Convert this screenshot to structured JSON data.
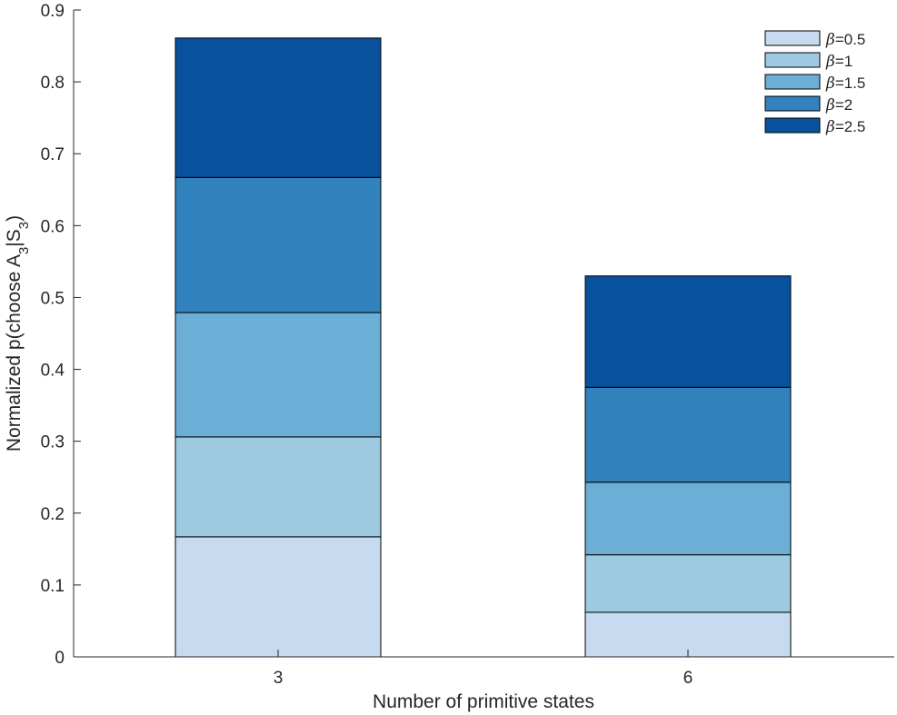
{
  "chart_data": {
    "type": "bar",
    "stacked": true,
    "categories": [
      "3",
      "6"
    ],
    "series": [
      {
        "name": "β=0.5",
        "color": "#c6dbef",
        "values": [
          0.167,
          0.062
        ]
      },
      {
        "name": "β=1",
        "color": "#9ecae1",
        "values": [
          0.139,
          0.08
        ]
      },
      {
        "name": "β=1.5",
        "color": "#6baed6",
        "values": [
          0.173,
          0.101
        ]
      },
      {
        "name": "β=2",
        "color": "#3182bd",
        "values": [
          0.188,
          0.132
        ]
      },
      {
        "name": "β=2.5",
        "color": "#08519c",
        "values": [
          0.194,
          0.155
        ]
      }
    ],
    "xlabel": "Number of primitive states",
    "ylabel": {
      "text": "Normalized p(choose A",
      "sub1": "3",
      "mid": "|S",
      "sub2": "3",
      "end": ")"
    },
    "ylim": [
      0,
      0.9
    ],
    "yticks": [
      "0",
      "0.1",
      "0.2",
      "0.3",
      "0.4",
      "0.5",
      "0.6",
      "0.7",
      "0.8",
      "0.9"
    ],
    "legend": {
      "position": "top-right",
      "entries": [
        {
          "symbol": "β",
          "text": "=0.5"
        },
        {
          "symbol": "β",
          "text": "=1"
        },
        {
          "symbol": "β",
          "text": "=1.5"
        },
        {
          "symbol": "β",
          "text": "=2"
        },
        {
          "symbol": "β",
          "text": "=2.5"
        }
      ]
    },
    "grid": false
  }
}
